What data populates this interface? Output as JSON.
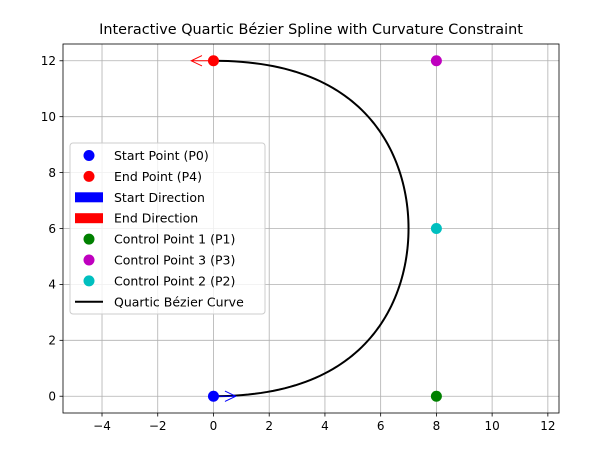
{
  "chart_data": {
    "type": "line",
    "title": "Interactive Quartic Bézier Spline with Curvature Constraint",
    "xlabel": "",
    "ylabel": "",
    "xlim": [
      -5.4,
      12.4
    ],
    "ylim": [
      -0.6,
      12.6
    ],
    "xticks": [
      -4,
      -2,
      0,
      2,
      4,
      6,
      8,
      10,
      12
    ],
    "yticks": [
      0,
      2,
      4,
      6,
      8,
      10,
      12
    ],
    "xtick_labels": [
      "−4",
      "−2",
      "0",
      "2",
      "4",
      "6",
      "8",
      "10",
      "12"
    ],
    "ytick_labels": [
      "0",
      "2",
      "4",
      "6",
      "8",
      "10",
      "12"
    ],
    "grid": true,
    "legend_position": "center-left",
    "points": {
      "P0": {
        "label": "Start Point (P0)",
        "x": 0,
        "y": 0,
        "color": "#0000ff"
      },
      "P4": {
        "label": "End Point (P4)",
        "x": 0,
        "y": 12,
        "color": "#ff0000"
      },
      "P1": {
        "label": "Control Point 1 (P1)",
        "x": 8,
        "y": 0,
        "color": "#008000"
      },
      "P3": {
        "label": "Control Point 3 (P3)",
        "x": 8,
        "y": 12,
        "color": "#bf00bf"
      },
      "P2": {
        "label": "Control Point 2 (P2)",
        "x": 8,
        "y": 6,
        "color": "#00bfbf"
      }
    },
    "directions": {
      "start": {
        "label": "Start Direction",
        "x": 0,
        "y": 0,
        "dx": 0.8,
        "dy": 0,
        "color": "#0000ff"
      },
      "end": {
        "label": "End Direction",
        "x": 0,
        "y": 12,
        "dx": -0.8,
        "dy": 0,
        "color": "#ff0000"
      }
    },
    "curve": {
      "label": "Quartic Bézier Curve",
      "color": "#000000",
      "control_points": [
        [
          0,
          0
        ],
        [
          8,
          0
        ],
        [
          8,
          6
        ],
        [
          8,
          12
        ],
        [
          0,
          12
        ]
      ]
    },
    "legend": [
      {
        "kind": "point",
        "ref": "P0"
      },
      {
        "kind": "point",
        "ref": "P4"
      },
      {
        "kind": "patch",
        "ref": "start"
      },
      {
        "kind": "patch",
        "ref": "end"
      },
      {
        "kind": "point",
        "ref": "P1"
      },
      {
        "kind": "point",
        "ref": "P3"
      },
      {
        "kind": "point",
        "ref": "P2"
      },
      {
        "kind": "line",
        "ref": "curve"
      }
    ]
  }
}
